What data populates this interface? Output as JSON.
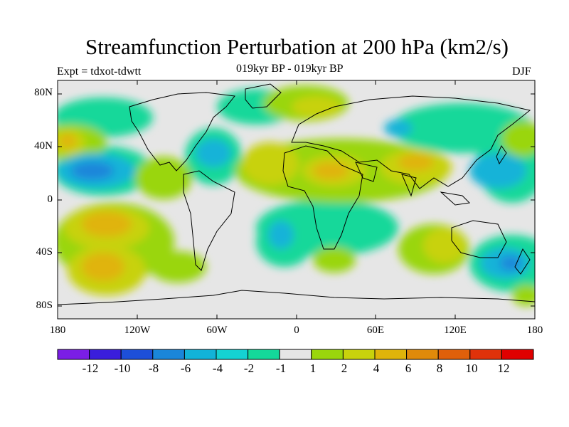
{
  "title": "Streamfunction Perturbation at 200 hPa (km2/s)",
  "subtitle_left": "Expt = tdxot-tdwtt",
  "subtitle_center": "019kyr BP - 019kyr BP",
  "subtitle_right": "DJF",
  "lat_labels": [
    "80N",
    "40N",
    "0",
    "40S",
    "80S"
  ],
  "lon_labels": [
    "180",
    "120W",
    "60W",
    "0",
    "60E",
    "120E",
    "180"
  ],
  "colorbar": {
    "labels": [
      "-12",
      "-10",
      "-8",
      "-6",
      "-4",
      "-2",
      "-1",
      "1",
      "2",
      "4",
      "6",
      "8",
      "10",
      "12"
    ],
    "colors": [
      "#7b1ee6",
      "#3a1edc",
      "#1d4fd8",
      "#1a86da",
      "#12b3d8",
      "#14d2d2",
      "#14d89a",
      "#e6e6e6",
      "#9ad60c",
      "#c8d20c",
      "#e0b40a",
      "#e08a0a",
      "#e0600a",
      "#e0320a",
      "#e00000"
    ]
  }
}
